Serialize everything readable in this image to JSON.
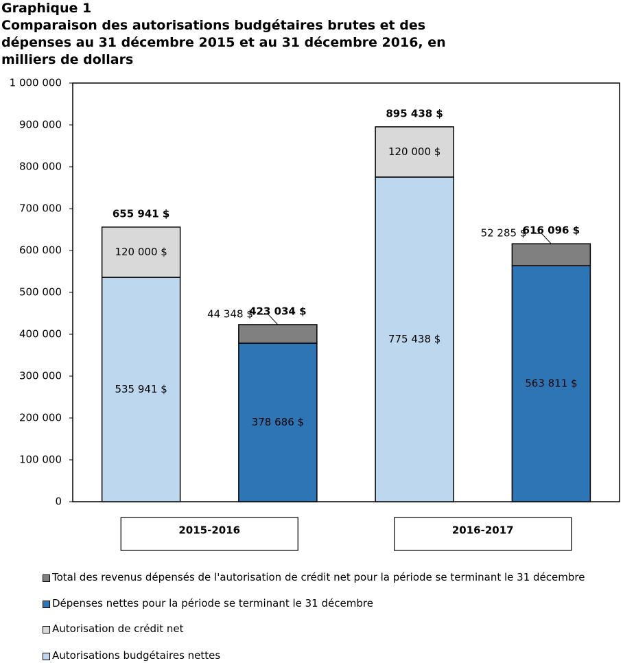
{
  "chart_data": {
    "type": "stacked_bar",
    "title": "Graphique 1",
    "subtitle": "Comparaison des autorisations budgétaires brutes et des dépenses au 31 décembre 2015 et au 31 décembre 2016, en milliers de dollars",
    "categories": [
      null,
      null,
      null,
      null
    ],
    "groups": [
      "2015-2016",
      "2016-2017"
    ],
    "series": [
      {
        "name": "Total des revenus dépensés de l'autorisation de crédit net pour la période se terminant le 31 décembre",
        "color": "#808080",
        "values": [
          null,
          44348,
          null,
          52285
        ],
        "value_labels": [
          null,
          "44 348 $",
          null,
          "52 285 $"
        ]
      },
      {
        "name": "Dépenses nettes pour la période se terminant le 31 décembre",
        "color": "#2e75b6",
        "values": [
          null,
          378686,
          null,
          563811
        ],
        "value_labels": [
          null,
          "378 686 $",
          null,
          "563 811 $"
        ]
      },
      {
        "name": "Autorisation de crédit net",
        "color": "#d9d9d9",
        "values": [
          120000,
          null,
          120000,
          null
        ],
        "value_labels": [
          "120 000 $",
          null,
          "120 000 $",
          null
        ]
      },
      {
        "name": "Autorisations budgétaires nettes",
        "color": "#bdd7ee",
        "values": [
          535941,
          null,
          775438,
          null
        ],
        "value_labels": [
          "535 941 $",
          null,
          "775 438 $",
          null
        ]
      }
    ],
    "totals": [
      655941,
      423034,
      895438,
      616096
    ],
    "total_labels": [
      "655 941 $",
      "423 034 $",
      "895 438 $",
      "616 096 $"
    ],
    "ylim": [
      0,
      1000000
    ],
    "yticks": [
      0,
      {
        "value": 100000,
        "label": "100 000"
      },
      {
        "value": 200000,
        "label": "200 000"
      },
      {
        "value": 300000,
        "label": "300 000"
      },
      {
        "value": 400000,
        "label": "400 000"
      },
      {
        "value": 500000,
        "label": "500 000"
      },
      {
        "value": 600000,
        "label": "600 000"
      },
      {
        "value": 700000,
        "label": "700 000"
      },
      {
        "value": 800000,
        "label": "800 000"
      },
      {
        "value": 900000,
        "label": "900 000"
      },
      {
        "value": 1000000,
        "label": "1 000 000"
      }
    ]
  }
}
